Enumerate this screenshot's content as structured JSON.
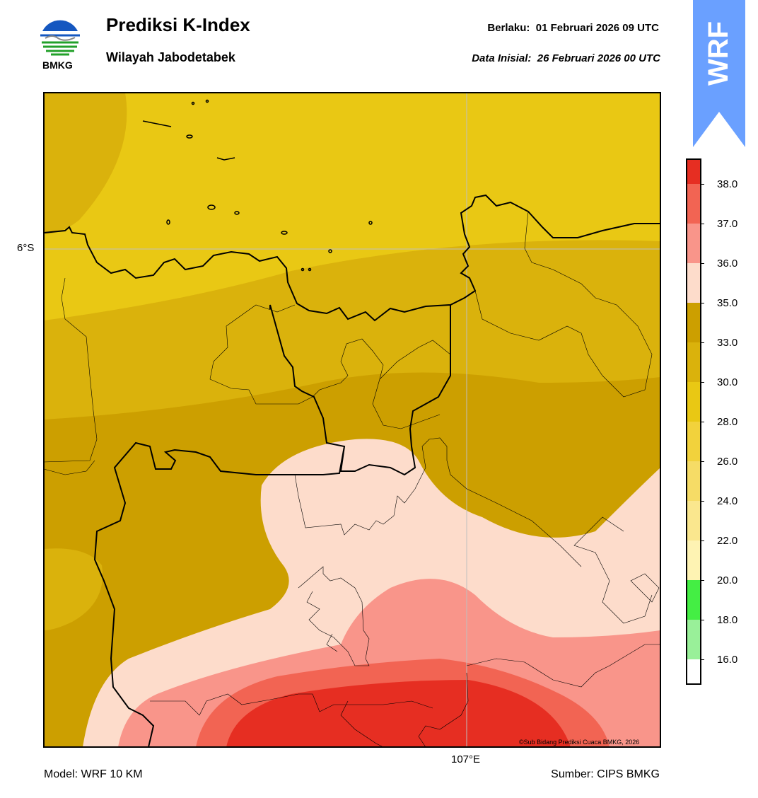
{
  "header": {
    "title": "Prediksi K-Index",
    "subtitle": "Wilayah Jabodetabek",
    "valid_label": "Berlaku:",
    "valid_time": "01 Februari 2026 09 UTC",
    "init_label": "Data Inisial:",
    "init_time": "26 Februari 2026 00 UTC",
    "logo_text": "BMKG"
  },
  "badge": {
    "text": "WRF",
    "color": "#6aa0ff"
  },
  "map": {
    "lat_label": "6°S",
    "lon_label": "107°E",
    "copyright": "©Sub Bidang Prediksi Cuaca BMKG, 2026",
    "colors": {
      "gold": "#e9c814",
      "dark_gold_a": "#dab20c",
      "dark_gold_b": "#cc9f00",
      "peach": "#fddccb",
      "salmon": "#f9958a",
      "tomato": "#f26453",
      "red": "#e62e22"
    }
  },
  "footer": {
    "model": "Model: WRF 10 KM",
    "source": "Sumber: CIPS BMKG"
  },
  "colorbar": {
    "labels": [
      "38.0",
      "37.0",
      "36.0",
      "35.0",
      "33.0",
      "30.0",
      "28.0",
      "26.0",
      "24.0",
      "22.0",
      "20.0",
      "18.0",
      "16.0"
    ],
    "colors": [
      "#e62e22",
      "#f26453",
      "#f9958a",
      "#fddccb",
      "#cc9f00",
      "#dab20c",
      "#e9c814",
      "#f2d23c",
      "#f6dc66",
      "#fae78e",
      "#fef3b3",
      "#44ee44",
      "#99f099",
      "#ffffff"
    ]
  }
}
